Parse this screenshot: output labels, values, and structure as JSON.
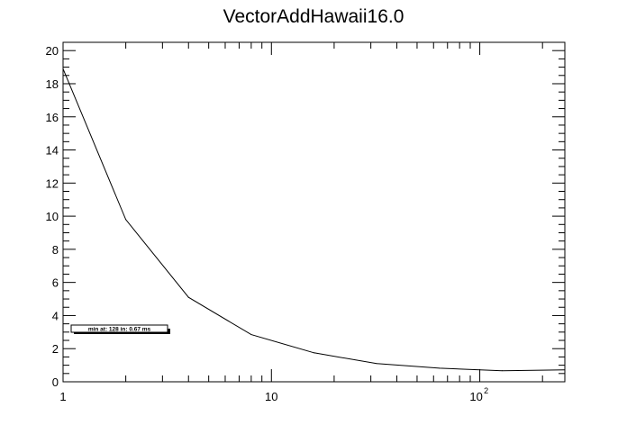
{
  "chart_data": {
    "type": "line",
    "title": "VectorAddHawaii16.0",
    "xlabel": "",
    "ylabel": "",
    "xscale": "log",
    "xlim": [
      1,
      256
    ],
    "ylim": [
      0,
      20.5
    ],
    "grid": false,
    "x": [
      1,
      2,
      4,
      8,
      16,
      32,
      64,
      128,
      256
    ],
    "series": [
      {
        "values": [
          18.9,
          9.8,
          5.1,
          2.85,
          1.75,
          1.1,
          0.82,
          0.67,
          0.72
        ]
      }
    ],
    "y_ticks": [
      {
        "value": 0,
        "label": "0"
      },
      {
        "value": 2,
        "label": "2"
      },
      {
        "value": 4,
        "label": "4"
      },
      {
        "value": 6,
        "label": "6"
      },
      {
        "value": 8,
        "label": "8"
      },
      {
        "value": 10,
        "label": "10"
      },
      {
        "value": 12,
        "label": "12"
      },
      {
        "value": 14,
        "label": "14"
      },
      {
        "value": 16,
        "label": "16"
      },
      {
        "value": 18,
        "label": "18"
      },
      {
        "value": 20,
        "label": "20"
      }
    ],
    "x_ticks": [
      {
        "value": 1,
        "label": "1"
      },
      {
        "value": 10,
        "label": "10"
      },
      {
        "value": 100,
        "label": "10",
        "exponent": "2"
      }
    ],
    "annotation": {
      "text": "min at: 128 in: 0.67 ms"
    },
    "colors": {
      "line": "#000000",
      "frame": "#000000",
      "background": "#ffffff"
    }
  }
}
